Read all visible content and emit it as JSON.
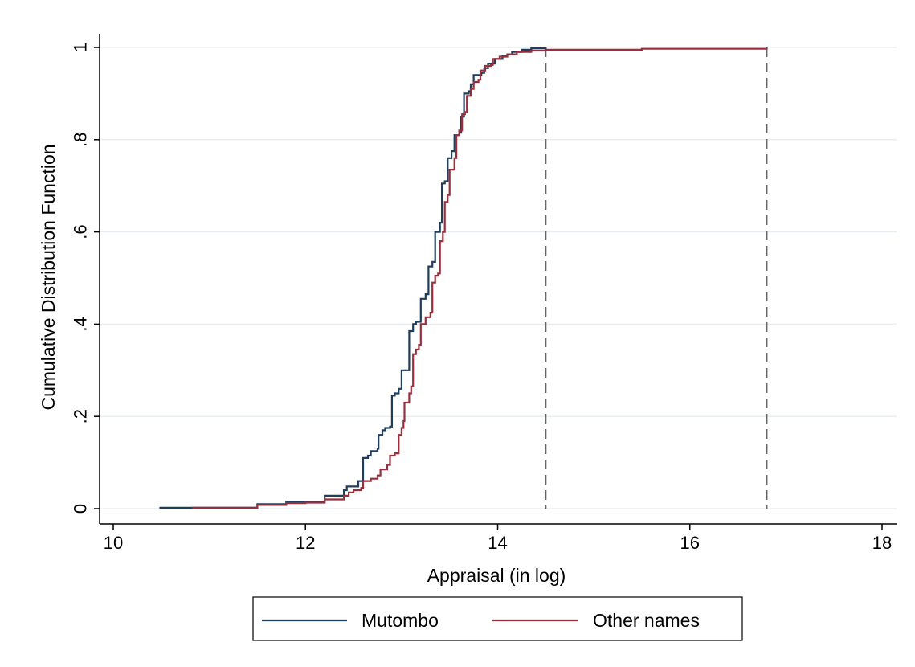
{
  "chart_data": {
    "type": "line",
    "step": true,
    "xlabel": "Appraisal (in log)",
    "ylabel": "Cumulative Distribution Function",
    "xlim": [
      10,
      18
    ],
    "ylim": [
      0,
      1
    ],
    "x_ticks": [
      {
        "value": 10,
        "label": "10"
      },
      {
        "value": 12,
        "label": "12"
      },
      {
        "value": 14,
        "label": "14"
      },
      {
        "value": 16,
        "label": "16"
      },
      {
        "value": 18,
        "label": "18"
      }
    ],
    "y_ticks": [
      {
        "value": 0,
        "label": "0"
      },
      {
        "value": 0.2,
        "label": ".2"
      },
      {
        "value": 0.4,
        "label": ".4"
      },
      {
        "value": 0.6,
        "label": ".6"
      },
      {
        "value": 0.8,
        "label": ".8"
      },
      {
        "value": 1,
        "label": "1"
      }
    ],
    "grid": {
      "horizontal": true,
      "vertical": false
    },
    "legend_position": "bottom",
    "reference_lines": [
      {
        "x": 14.5,
        "color": "#666666",
        "style": "dashed"
      },
      {
        "x": 16.8,
        "color": "#666666",
        "style": "dashed"
      }
    ],
    "series": [
      {
        "name": "Mutombo",
        "color": "#1f3d5c",
        "points": [
          [
            10.48,
            0.002
          ],
          [
            11.5,
            0.01
          ],
          [
            11.8,
            0.015
          ],
          [
            12.2,
            0.02
          ],
          [
            12.2,
            0.028
          ],
          [
            12.4,
            0.04
          ],
          [
            12.43,
            0.048
          ],
          [
            12.55,
            0.06
          ],
          [
            12.6,
            0.06
          ],
          [
            12.6,
            0.11
          ],
          [
            12.65,
            0.115
          ],
          [
            12.68,
            0.125
          ],
          [
            12.75,
            0.13
          ],
          [
            12.76,
            0.16
          ],
          [
            12.8,
            0.17
          ],
          [
            12.83,
            0.175
          ],
          [
            12.88,
            0.178
          ],
          [
            12.9,
            0.18
          ],
          [
            12.9,
            0.245
          ],
          [
            12.93,
            0.25
          ],
          [
            12.97,
            0.26
          ],
          [
            13.0,
            0.26
          ],
          [
            13.0,
            0.3
          ],
          [
            13.05,
            0.3
          ],
          [
            13.08,
            0.3
          ],
          [
            13.08,
            0.385
          ],
          [
            13.12,
            0.4
          ],
          [
            13.15,
            0.405
          ],
          [
            13.2,
            0.41
          ],
          [
            13.2,
            0.455
          ],
          [
            13.25,
            0.465
          ],
          [
            13.28,
            0.465
          ],
          [
            13.28,
            0.525
          ],
          [
            13.32,
            0.535
          ],
          [
            13.35,
            0.535
          ],
          [
            13.35,
            0.6
          ],
          [
            13.4,
            0.62
          ],
          [
            13.42,
            0.62
          ],
          [
            13.42,
            0.705
          ],
          [
            13.45,
            0.71
          ],
          [
            13.48,
            0.71
          ],
          [
            13.48,
            0.76
          ],
          [
            13.52,
            0.775
          ],
          [
            13.55,
            0.775
          ],
          [
            13.55,
            0.81
          ],
          [
            13.6,
            0.815
          ],
          [
            13.62,
            0.85
          ],
          [
            13.65,
            0.85
          ],
          [
            13.65,
            0.9
          ],
          [
            13.7,
            0.905
          ],
          [
            13.72,
            0.92
          ],
          [
            13.75,
            0.92
          ],
          [
            13.75,
            0.94
          ],
          [
            13.8,
            0.94
          ],
          [
            13.83,
            0.945
          ],
          [
            13.86,
            0.955
          ],
          [
            13.9,
            0.955
          ],
          [
            13.9,
            0.965
          ],
          [
            13.95,
            0.965
          ],
          [
            13.97,
            0.975
          ],
          [
            14.05,
            0.982
          ],
          [
            14.1,
            0.985
          ],
          [
            14.15,
            0.99
          ],
          [
            14.25,
            0.995
          ],
          [
            14.35,
            0.998
          ],
          [
            14.5,
            1.0
          ]
        ]
      },
      {
        "name": "Other names",
        "color": "#9a2f3c",
        "points": [
          [
            10.82,
            0.002
          ],
          [
            11.5,
            0.008
          ],
          [
            11.8,
            0.012
          ],
          [
            12.0,
            0.013
          ],
          [
            12.2,
            0.02
          ],
          [
            12.4,
            0.028
          ],
          [
            12.45,
            0.035
          ],
          [
            12.5,
            0.04
          ],
          [
            12.58,
            0.045
          ],
          [
            12.6,
            0.06
          ],
          [
            12.68,
            0.065
          ],
          [
            12.75,
            0.072
          ],
          [
            12.78,
            0.085
          ],
          [
            12.85,
            0.095
          ],
          [
            12.88,
            0.115
          ],
          [
            12.93,
            0.12
          ],
          [
            12.97,
            0.16
          ],
          [
            13.0,
            0.175
          ],
          [
            13.02,
            0.19
          ],
          [
            13.03,
            0.23
          ],
          [
            13.08,
            0.25
          ],
          [
            13.1,
            0.265
          ],
          [
            13.12,
            0.335
          ],
          [
            13.15,
            0.345
          ],
          [
            13.18,
            0.355
          ],
          [
            13.2,
            0.4
          ],
          [
            13.25,
            0.415
          ],
          [
            13.3,
            0.425
          ],
          [
            13.32,
            0.49
          ],
          [
            13.35,
            0.505
          ],
          [
            13.38,
            0.51
          ],
          [
            13.4,
            0.58
          ],
          [
            13.43,
            0.6
          ],
          [
            13.45,
            0.665
          ],
          [
            13.48,
            0.68
          ],
          [
            13.5,
            0.735
          ],
          [
            13.55,
            0.76
          ],
          [
            13.57,
            0.81
          ],
          [
            13.6,
            0.82
          ],
          [
            13.63,
            0.855
          ],
          [
            13.66,
            0.86
          ],
          [
            13.68,
            0.895
          ],
          [
            13.72,
            0.91
          ],
          [
            13.75,
            0.925
          ],
          [
            13.8,
            0.93
          ],
          [
            13.82,
            0.95
          ],
          [
            13.87,
            0.96
          ],
          [
            13.93,
            0.962
          ],
          [
            13.95,
            0.975
          ],
          [
            14.02,
            0.98
          ],
          [
            14.1,
            0.985
          ],
          [
            14.2,
            0.99
          ],
          [
            14.35,
            0.993
          ],
          [
            14.5,
            0.995
          ],
          [
            15.5,
            0.997
          ],
          [
            16.8,
            1.0
          ]
        ]
      }
    ]
  }
}
